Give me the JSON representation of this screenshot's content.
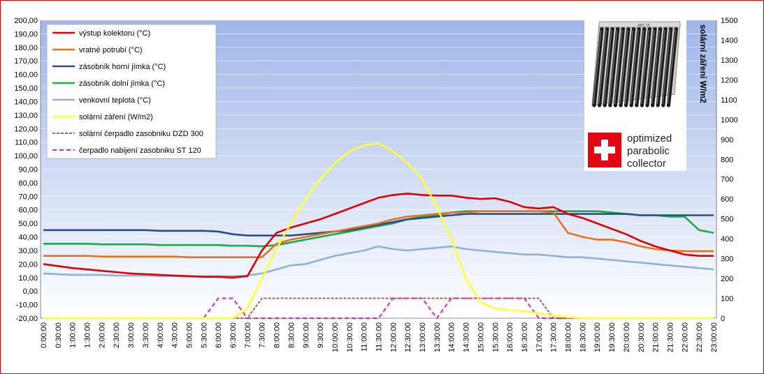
{
  "chart_data": {
    "type": "line",
    "title": "",
    "xlabel": "",
    "ylabel": "",
    "y2label": "solární záření W/m2",
    "ylim": [
      -20,
      200
    ],
    "y2lim": [
      0,
      1500
    ],
    "grid": true,
    "legend_position": "top-left",
    "y_ticks": [
      "-20,00",
      "-10,00",
      "0,00",
      "10,00",
      "20,00",
      "30,00",
      "40,00",
      "50,00",
      "60,00",
      "70,00",
      "80,00",
      "90,00",
      "100,00",
      "110,00",
      "120,00",
      "130,00",
      "140,00",
      "150,00",
      "160,00",
      "170,00",
      "180,00",
      "190,00",
      "200,00"
    ],
    "y2_ticks": [
      "0",
      "100",
      "200",
      "300",
      "400",
      "500",
      "600",
      "700",
      "800",
      "900",
      "1000",
      "1100",
      "1200",
      "1300",
      "1400",
      "1500"
    ],
    "x": [
      "0:00:00",
      "0:30:00",
      "1:00:00",
      "1:30:00",
      "2:00:00",
      "2:30:00",
      "3:00:00",
      "3:30:00",
      "4:00:00",
      "4:30:00",
      "5:00:00",
      "5:30:00",
      "6:00:00",
      "6:30:00",
      "7:00:00",
      "7:30:00",
      "8:00:00",
      "8:30:00",
      "9:00:00",
      "9:30:00",
      "10:00:00",
      "10:30:00",
      "11:00:00",
      "11:30:00",
      "12:00:00",
      "12:30:00",
      "13:00:00",
      "13:30:00",
      "14:00:00",
      "14:30:00",
      "15:00:00",
      "15:30:00",
      "16:00:00",
      "16:30:00",
      "17:00:00",
      "17:30:00",
      "18:00:00",
      "18:30:00",
      "19:00:00",
      "19:30:00",
      "20:00:00",
      "20:30:00",
      "21:00:00",
      "21:30:00",
      "22:00:00",
      "22:30:00",
      "23:00:00"
    ],
    "series": [
      {
        "name": "výstup kolektoru (°C)",
        "color": "#e00000",
        "axis": "left",
        "dash": "solid",
        "values": [
          20,
          18.5,
          17,
          16,
          15,
          14,
          13,
          12.5,
          12,
          11.5,
          11,
          10.5,
          10.5,
          10,
          11,
          30,
          43,
          47,
          50,
          53,
          57,
          61,
          65,
          69,
          71,
          72,
          71,
          70.5,
          70.5,
          69,
          68,
          68.5,
          66,
          62,
          61,
          62,
          57,
          54,
          50,
          46,
          42,
          37,
          33,
          30,
          27,
          26,
          26
        ]
      },
      {
        "name": "vratné potrubí (°C)",
        "color": "#e8701a",
        "axis": "left",
        "dash": "solid",
        "values": [
          26,
          26,
          26,
          26,
          25.5,
          25.5,
          25.5,
          25.5,
          25.5,
          25.5,
          25,
          25,
          25,
          25,
          25,
          25,
          35,
          38,
          40,
          42,
          44,
          46,
          48,
          50,
          53,
          55,
          56,
          57,
          58,
          58,
          59,
          59,
          59,
          59,
          59,
          58,
          43,
          40,
          38,
          38,
          36,
          33,
          31,
          30,
          29.5,
          29.5,
          29.5
        ]
      },
      {
        "name": "zásobník horní jímka (°C)",
        "color": "#2b4d8c",
        "axis": "left",
        "dash": "solid",
        "values": [
          45,
          45,
          45,
          45,
          45,
          45,
          45,
          45,
          44.5,
          44.5,
          44.5,
          44.5,
          44,
          42,
          41,
          41,
          41,
          41,
          42,
          43,
          44,
          45,
          47,
          49,
          51,
          53,
          54,
          55,
          56,
          57,
          57,
          57,
          57,
          57,
          57,
          57,
          57,
          57,
          57,
          57,
          57,
          56,
          56,
          56,
          56,
          56,
          56
        ]
      },
      {
        "name": "zásobník dolní jímka (°C)",
        "color": "#1aaa4a",
        "axis": "left",
        "dash": "solid",
        "values": [
          35,
          35,
          35,
          35,
          34.5,
          34.5,
          34.5,
          34.5,
          34,
          34,
          34,
          34,
          34,
          33.5,
          33.5,
          33,
          34,
          36,
          38,
          40,
          42,
          44,
          46,
          48,
          50,
          53,
          55,
          56,
          58,
          59,
          59,
          59,
          59,
          59,
          59,
          59,
          59,
          59,
          59,
          58,
          57,
          56,
          56,
          55,
          55,
          45,
          43
        ]
      },
      {
        "name": "venkovní teplota (°C)",
        "color": "#8fb0d8",
        "axis": "left",
        "dash": "solid",
        "values": [
          13,
          12.5,
          12,
          12,
          12,
          11.5,
          11.5,
          11.5,
          11,
          11,
          11,
          11,
          11,
          11,
          11.5,
          13,
          16,
          19,
          20,
          23,
          26,
          28,
          30,
          33,
          31,
          30,
          31,
          32,
          33,
          31,
          30,
          29,
          28,
          27,
          27,
          26,
          25,
          25,
          24,
          23,
          22,
          21,
          20,
          19,
          18,
          17,
          16
        ]
      },
      {
        "name": "solární záření (W/m2)",
        "color": "#ffff33",
        "axis": "right",
        "dash": "solid",
        "values": [
          0,
          0,
          0,
          0,
          0,
          0,
          0,
          0,
          0,
          0,
          0,
          0,
          0,
          0,
          50,
          200,
          350,
          480,
          600,
          700,
          780,
          840,
          870,
          880,
          840,
          780,
          700,
          560,
          400,
          200,
          80,
          50,
          40,
          35,
          25,
          12,
          5,
          0,
          0,
          0,
          0,
          0,
          0,
          0,
          0,
          0,
          0
        ]
      },
      {
        "name": "solární čerpadlo zasobniku  DZD 300",
        "color": "#b06060",
        "axis": "right",
        "dash": "dashed",
        "values": [
          0,
          0,
          0,
          0,
          0,
          0,
          0,
          0,
          0,
          0,
          0,
          0,
          0,
          0,
          0,
          100,
          100,
          100,
          100,
          100,
          100,
          100,
          100,
          100,
          100,
          100,
          100,
          100,
          100,
          100,
          100,
          100,
          100,
          100,
          100,
          0,
          0,
          0,
          0,
          0,
          0,
          0,
          0,
          0,
          0,
          0,
          0
        ]
      },
      {
        "name": "čerpadlo nabijení  zasobniku ST 120",
        "color": "#e020b0",
        "axis": "right",
        "dash": "dashed",
        "values": [
          0,
          0,
          0,
          0,
          0,
          0,
          0,
          0,
          0,
          0,
          0,
          0,
          100,
          100,
          0,
          0,
          0,
          0,
          0,
          0,
          0,
          0,
          0,
          0,
          100,
          100,
          100,
          0,
          100,
          100,
          100,
          100,
          100,
          100,
          0,
          0,
          0,
          0,
          0,
          0,
          0,
          0,
          0,
          0,
          0,
          0,
          0
        ]
      }
    ]
  },
  "logo": {
    "line1": "optimized",
    "line2": "parabolic",
    "line3": "collector",
    "panel_label": "APC 15",
    "flag_color": "#e30613",
    "cross_color": "#ffffff"
  }
}
